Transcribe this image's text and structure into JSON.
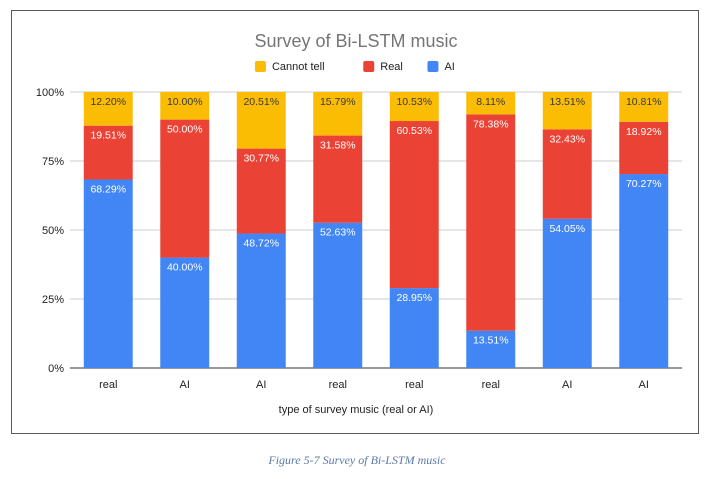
{
  "chart_data": {
    "type": "bar",
    "stacked": true,
    "normalized": true,
    "title": "Survey of Bi-LSTM music",
    "xlabel": "type of survey music (real or AI)",
    "ylabel": "",
    "categories": [
      "real",
      "AI",
      "AI",
      "real",
      "real",
      "real",
      "AI",
      "AI"
    ],
    "series": [
      {
        "name": "AI",
        "color": "#4285f4",
        "values": [
          68.29,
          40.0,
          48.72,
          52.63,
          28.95,
          13.51,
          54.05,
          70.27
        ],
        "labels": [
          "68.29%",
          "40.00%",
          "48.72%",
          "52.63%",
          "28.95%",
          "13.51%",
          "54.05%",
          "70.27%"
        ]
      },
      {
        "name": "Real",
        "color": "#ea4335",
        "values": [
          19.51,
          50.0,
          30.77,
          31.58,
          60.53,
          78.38,
          32.43,
          18.92
        ],
        "labels": [
          "19.51%",
          "50.00%",
          "30.77%",
          "31.58%",
          "60.53%",
          "78.38%",
          "32.43%",
          "18.92%"
        ]
      },
      {
        "name": "Cannot tell",
        "color": "#fbbc04",
        "values": [
          12.2,
          10.0,
          20.51,
          15.79,
          10.53,
          8.11,
          13.51,
          10.81
        ],
        "labels": [
          "12.20%",
          "10.00%",
          "20.51%",
          "15.79%",
          "10.53%",
          "8.11%",
          "13.51%",
          "10.81%"
        ]
      }
    ],
    "legend_order": [
      "Cannot tell",
      "Real",
      "AI"
    ],
    "legend_position": "top",
    "ylim": [
      0,
      100
    ],
    "yticks": [
      0,
      25,
      50,
      75,
      100
    ],
    "ytick_labels": [
      "0%",
      "25%",
      "50%",
      "75%",
      "100%"
    ],
    "grid": true
  },
  "caption": "Figure 5-7 Survey of Bi-LSTM music"
}
